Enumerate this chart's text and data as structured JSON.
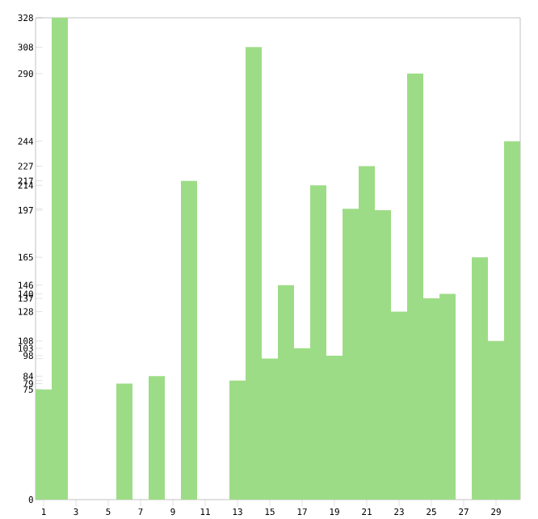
{
  "chart_data": {
    "type": "bar",
    "categories": [
      "1",
      null,
      "3",
      null,
      "5",
      null,
      "7",
      null,
      "9",
      null,
      "11",
      null,
      "13",
      null,
      "15",
      null,
      "17",
      null,
      "19",
      null,
      "21",
      null,
      "23",
      null,
      "25",
      null,
      "27",
      null,
      "29",
      null
    ],
    "values": [
      75,
      328,
      0,
      0,
      0,
      79,
      0,
      84,
      0,
      217,
      0,
      0,
      81,
      308,
      96,
      146,
      103,
      214,
      98,
      198,
      227,
      197,
      128,
      290,
      137,
      140,
      0,
      165,
      108,
      244
    ],
    "color": "#9ddc86",
    "ylim": [
      0,
      328
    ],
    "yticks": [
      0,
      75,
      79,
      {
        "value": 81,
        "label": null
      },
      84,
      {
        "value": 96,
        "label": null
      },
      98,
      103,
      108,
      128,
      137,
      140,
      146,
      165,
      197,
      {
        "value": 198,
        "label": null
      },
      214,
      217,
      227,
      244,
      290,
      308,
      328
    ],
    "grid": false
  }
}
